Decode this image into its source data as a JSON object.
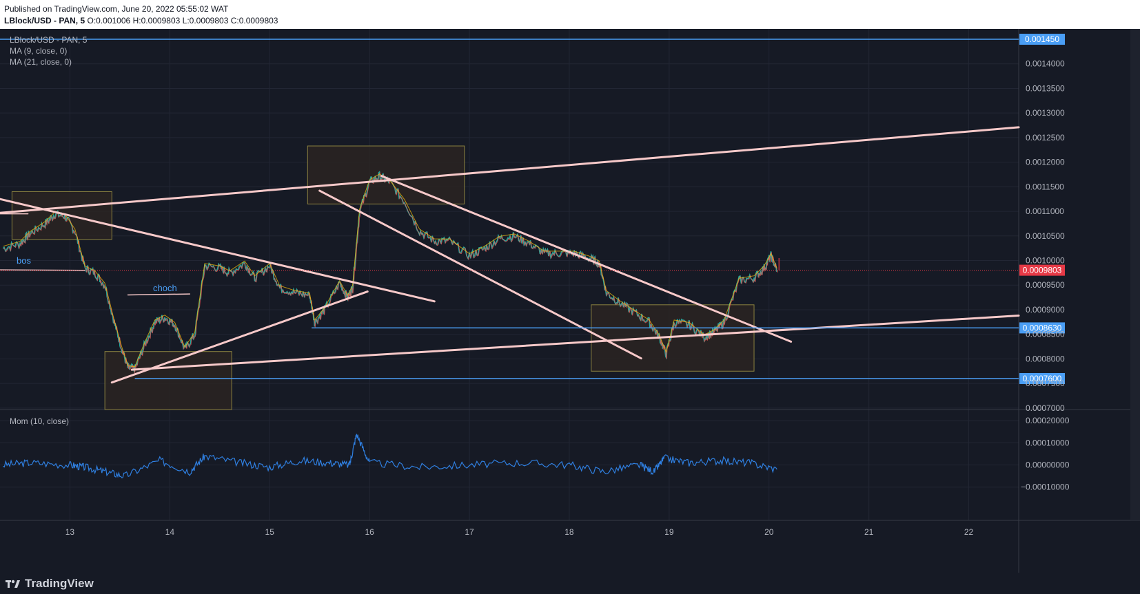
{
  "header": {
    "published": "Published on TradingView.com, June 20, 2022 05:55:02 WAT",
    "symbol": "LBlock/USD - PAN, 5",
    "open_label": "O:",
    "open": "0.001006",
    "high_label": "H:",
    "high": "0.0009803",
    "low_label": "L:",
    "low": "0.0009803",
    "close_label": "C:",
    "close": "0.0009803"
  },
  "legend": {
    "symbol": "LBlock/USD - PAN, 5",
    "ma9": "MA (9, close, 0)",
    "ma21": "MA (21, close, 0)",
    "momentum": "Mom (10, close)"
  },
  "annotations": {
    "bos": "bos",
    "choch": "choch"
  },
  "footer": {
    "brand": "TradingView"
  },
  "colors": {
    "background": "#161a25",
    "grid": "#222634",
    "trendline": "#f7c9c9",
    "horizontal": "#4a9ef5",
    "box_border": "#8c8240",
    "box_fill": "#2a2522",
    "price_up": "#26a69a",
    "price_down": "#ef5350",
    "ma9": "#26a69a",
    "ma21": "#f0b90b",
    "momentum": "#2f7fe0",
    "last_price": "#e63946",
    "axis_text": "#b2b5be"
  },
  "chart_data": [
    {
      "type": "line",
      "title": "LBlock/USD - PAN, 5",
      "x_ticks": [
        "13",
        "14",
        "15",
        "16",
        "17",
        "18",
        "19",
        "20",
        "21",
        "22"
      ],
      "y_ticks": [
        "0.0007000",
        "0.0007500",
        "0.0008000",
        "0.0008500",
        "0.0009000",
        "0.0009500",
        "0.0010000",
        "0.0010500",
        "0.0011000",
        "0.0011500",
        "0.0012000",
        "0.0012500",
        "0.0013000",
        "0.0013500",
        "0.0014000"
      ],
      "ylim": [
        0.000697,
        0.001471
      ],
      "xlim": [
        12.3,
        22.5
      ],
      "series": [
        {
          "name": "LBlock/USD - PAN, 5",
          "x": [
            12.33,
            12.5,
            12.6,
            12.75,
            12.85,
            12.95,
            13.05,
            13.15,
            13.25,
            13.35,
            13.45,
            13.52,
            13.58,
            13.65,
            13.75,
            13.85,
            13.95,
            14.05,
            14.15,
            14.25,
            14.35,
            14.5,
            14.6,
            14.75,
            14.85,
            15.0,
            15.1,
            15.25,
            15.4,
            15.45,
            15.55,
            15.7,
            15.78,
            15.83,
            15.9,
            16.0,
            16.1,
            16.2,
            16.35,
            16.5,
            16.65,
            16.8,
            17.0,
            17.15,
            17.3,
            17.45,
            17.6,
            17.75,
            17.9,
            18.05,
            18.2,
            18.3,
            18.37,
            18.5,
            18.65,
            18.8,
            18.9,
            18.97,
            19.05,
            19.2,
            19.35,
            19.45,
            19.55,
            19.7,
            19.85,
            19.95,
            20.02,
            20.08
          ],
          "values": [
            0.001025,
            0.001035,
            0.001055,
            0.001075,
            0.001095,
            0.00109,
            0.00106,
            0.000985,
            0.000975,
            0.00095,
            0.00087,
            0.00082,
            0.000782,
            0.00078,
            0.00083,
            0.000875,
            0.000885,
            0.00087,
            0.00082,
            0.00085,
            0.00099,
            0.000985,
            0.000975,
            0.000995,
            0.000965,
            0.00099,
            0.000945,
            0.000935,
            0.00093,
            0.000875,
            0.0009,
            0.000955,
            0.000925,
            0.000945,
            0.0011,
            0.00116,
            0.001172,
            0.00116,
            0.00112,
            0.00106,
            0.00104,
            0.00104,
            0.00101,
            0.001025,
            0.001045,
            0.00105,
            0.001035,
            0.001015,
            0.001015,
            0.001015,
            0.001005,
            0.000995,
            0.000935,
            0.000915,
            0.000895,
            0.000875,
            0.000845,
            0.00081,
            0.000875,
            0.00087,
            0.000845,
            0.000855,
            0.000875,
            0.00096,
            0.000965,
            0.000985,
            0.00101,
            0.00098
          ]
        },
        {
          "name": "0.001450",
          "type": "hline",
          "value": 0.00145
        },
        {
          "name": "0.0008630",
          "type": "hline",
          "value": 0.000863
        },
        {
          "name": "0.0007600",
          "type": "hline",
          "value": 0.00076
        }
      ],
      "price_labels": [
        "0.001450",
        "0.0009803",
        "0.0008630",
        "0.0007600"
      ],
      "last_price": 0.0009803,
      "grid": true
    },
    {
      "type": "line",
      "title": "Mom (10, close)",
      "y_ticks": [
        "0.00020000",
        "0.00010000",
        "0.00000000",
        "−0.00010000"
      ],
      "ylim": [
        -0.00025,
        0.00025
      ],
      "series": [
        {
          "name": "Mom (10, close)",
          "x": [
            12.33,
            12.6,
            13.0,
            13.15,
            13.35,
            13.55,
            13.9,
            14.2,
            14.35,
            14.7,
            15.0,
            15.3,
            15.6,
            15.8,
            15.87,
            16.0,
            16.5,
            17.0,
            17.5,
            18.0,
            18.35,
            18.7,
            18.85,
            18.95,
            19.2,
            19.5,
            19.8,
            20.08
          ],
          "values": [
            0.0,
            1e-05,
            0.0,
            -1e-05,
            -3e-05,
            -5e-05,
            2e-05,
            -3e-05,
            4e-05,
            1e-05,
            -1e-05,
            2e-05,
            1e-05,
            0.0,
            0.00014,
            1e-05,
            -1e-05,
            0.0,
            1e-05,
            0.0,
            -3e-05,
            0.0,
            -3e-05,
            3e-05,
            1e-05,
            2e-05,
            1e-05,
            -2e-05
          ]
        }
      ],
      "grid": true
    }
  ]
}
